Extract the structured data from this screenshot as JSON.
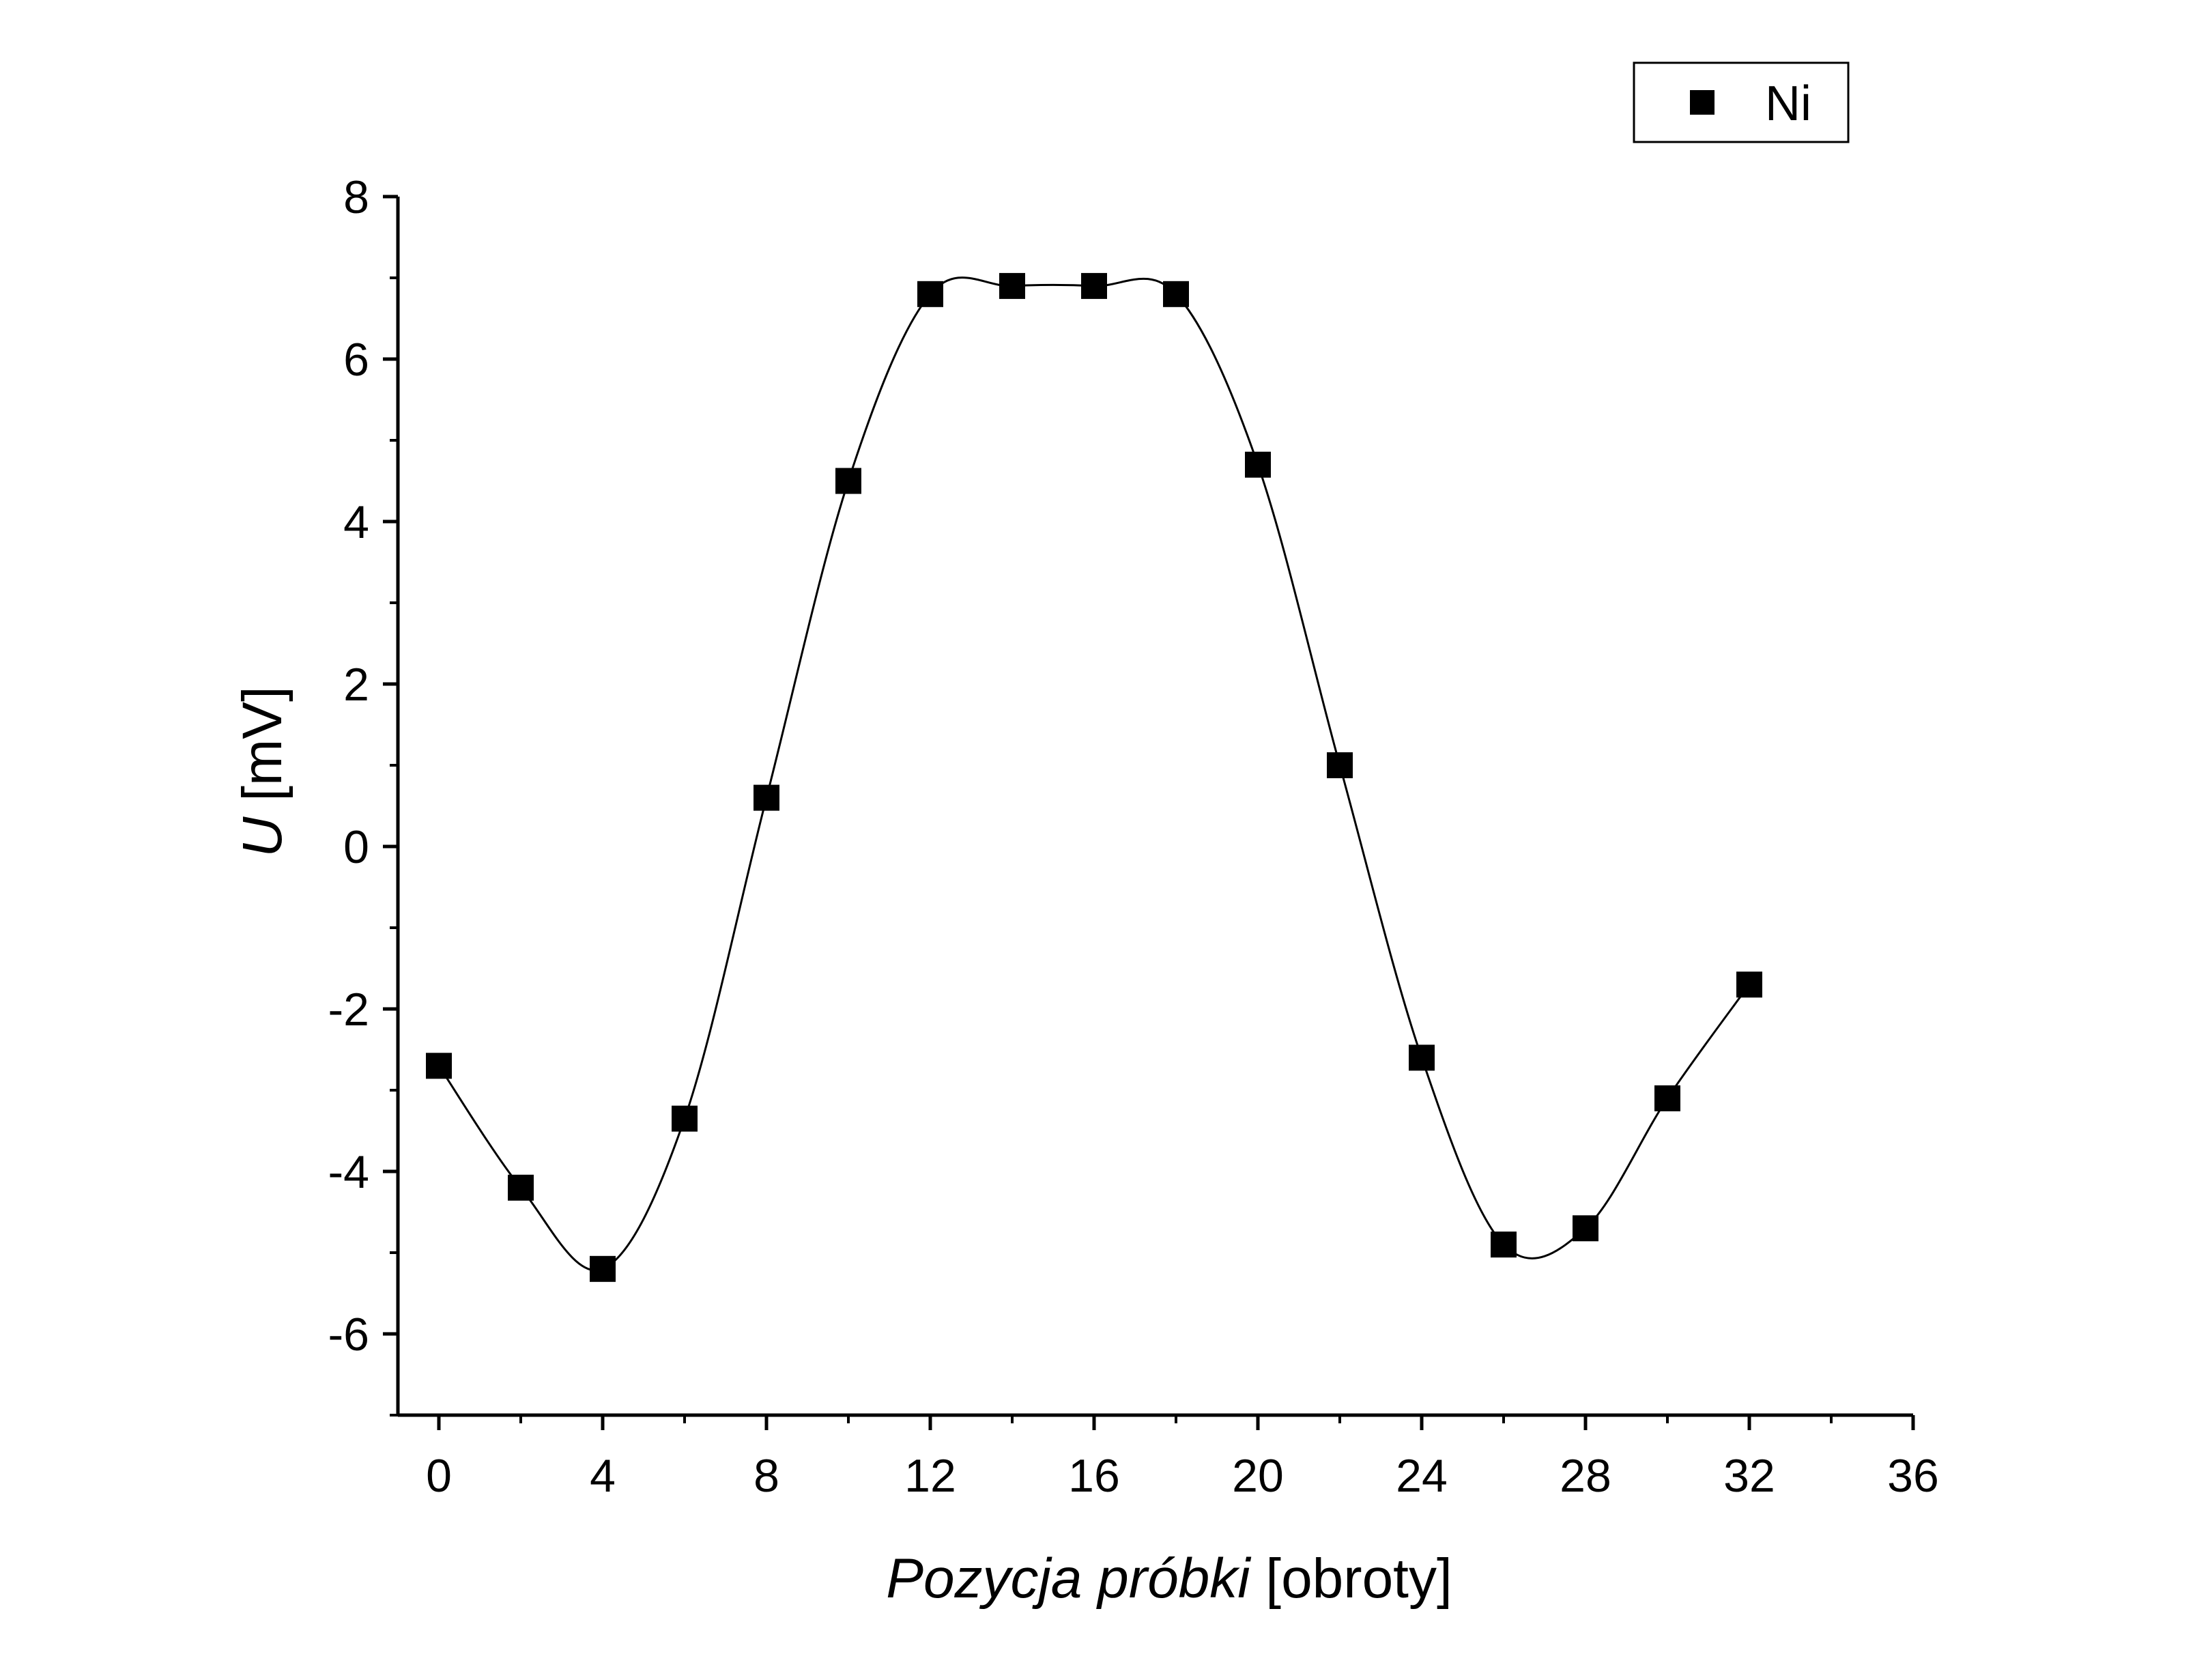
{
  "chart_data": {
    "type": "scatter",
    "title": "",
    "xlabel": {
      "italic": "Pozycja próbki",
      "plain": " [obroty]"
    },
    "ylabel": {
      "italic": "U",
      "plain": " [mV]"
    },
    "xlim": [
      -1,
      36
    ],
    "ylim": [
      -7,
      8
    ],
    "x_ticks": [
      0,
      4,
      8,
      12,
      16,
      20,
      24,
      28,
      32,
      36
    ],
    "x_minor_ticks": [
      2,
      6,
      10,
      14,
      18,
      22,
      26,
      30,
      34
    ],
    "y_ticks": [
      -6,
      -4,
      -2,
      0,
      2,
      4,
      6,
      8
    ],
    "y_minor_ticks": [
      -7,
      -5,
      -3,
      -1,
      1,
      3,
      5,
      7
    ],
    "grid": false,
    "legend": {
      "position": "top-right",
      "entries": [
        {
          "label": "Ni",
          "marker": "square"
        }
      ]
    },
    "series": [
      {
        "name": "Ni",
        "marker": "square",
        "color": "#000000",
        "fit_curve": "smooth spline",
        "x": [
          0,
          2,
          4,
          6,
          8,
          10,
          12,
          14,
          16,
          18,
          20,
          22,
          24,
          26,
          28,
          30,
          32
        ],
        "y": [
          -2.7,
          -4.2,
          -5.2,
          -3.35,
          0.6,
          4.5,
          6.8,
          6.9,
          6.9,
          6.8,
          4.7,
          1.0,
          -2.6,
          -4.9,
          -4.7,
          -3.1,
          -1.7
        ]
      }
    ]
  }
}
